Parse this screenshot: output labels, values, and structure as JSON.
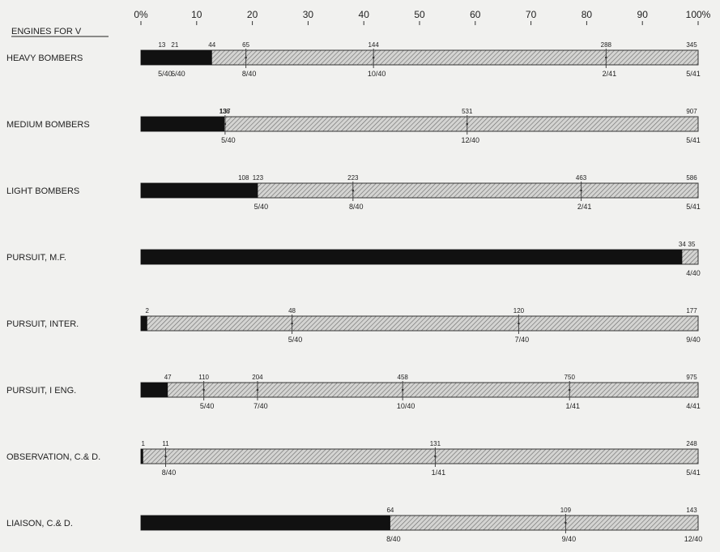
{
  "chart_data": {
    "type": "bar",
    "header_label": "ENGINES FOR V",
    "x_axis": {
      "ticks": [
        0,
        10,
        20,
        30,
        40,
        50,
        60,
        70,
        80,
        90,
        100
      ],
      "tick_labels": [
        "0%",
        "10",
        "20",
        "30",
        "40",
        "50",
        "60",
        "70",
        "80",
        "90",
        "100%"
      ],
      "range": [
        0,
        100
      ]
    },
    "colors": {
      "filled": "#111111",
      "hatched": "#cfcfcf",
      "outline": "#333333"
    },
    "rows": [
      {
        "category": "HEAVY BOMBERS",
        "total": 345,
        "filled": 44,
        "markers": [
          {
            "value": 13,
            "label": "13",
            "date": "5/40"
          },
          {
            "value": 21,
            "label": "21",
            "date": "6/40"
          },
          {
            "value": 44,
            "label": "44",
            "date": ""
          },
          {
            "value": 65,
            "label": "65",
            "date": "8/40"
          },
          {
            "value": 144,
            "label": "144",
            "date": "10/40"
          },
          {
            "value": 288,
            "label": "288",
            "date": "2/41"
          },
          {
            "value": 345,
            "label": "345",
            "date": "5/41"
          }
        ]
      },
      {
        "category": "MEDIUM BOMBERS",
        "total": 907,
        "filled": 136,
        "markers": [
          {
            "value": 136,
            "label": "136",
            "date": ""
          },
          {
            "value": 137,
            "label": "137",
            "date": "5/40"
          },
          {
            "value": 531,
            "label": "531",
            "date": "12/40"
          },
          {
            "value": 907,
            "label": "907",
            "date": "5/41"
          }
        ]
      },
      {
        "category": "LIGHT BOMBERS",
        "total": 586,
        "filled": 123,
        "markers": [
          {
            "value": 108,
            "label": "108",
            "date": ""
          },
          {
            "value": 123,
            "label": "123",
            "date": "5/40"
          },
          {
            "value": 223,
            "label": "223",
            "date": "8/40"
          },
          {
            "value": 463,
            "label": "463",
            "date": "2/41"
          },
          {
            "value": 586,
            "label": "586",
            "date": "5/41"
          }
        ]
      },
      {
        "category": "PURSUIT, M.F.",
        "total": 35,
        "filled": 34,
        "markers": [
          {
            "value": 34,
            "label": "34",
            "date": ""
          },
          {
            "value": 35,
            "label": "35",
            "date": "4/40"
          }
        ]
      },
      {
        "category": "PURSUIT, INTER.",
        "total": 177,
        "filled": 2,
        "markers": [
          {
            "value": 2,
            "label": "2",
            "date": ""
          },
          {
            "value": 48,
            "label": "48",
            "date": "5/40"
          },
          {
            "value": 120,
            "label": "120",
            "date": "7/40"
          },
          {
            "value": 177,
            "label": "177",
            "date": "9/40"
          }
        ]
      },
      {
        "category": "PURSUIT, I ENG.",
        "total": 975,
        "filled": 47,
        "markers": [
          {
            "value": 47,
            "label": "47",
            "date": ""
          },
          {
            "value": 110,
            "label": "110",
            "date": "5/40"
          },
          {
            "value": 204,
            "label": "204",
            "date": "7/40"
          },
          {
            "value": 458,
            "label": "458",
            "date": "10/40"
          },
          {
            "value": 750,
            "label": "750",
            "date": "1/41"
          },
          {
            "value": 975,
            "label": "975",
            "date": "4/41"
          }
        ]
      },
      {
        "category": "OBSERVATION, C.& D.",
        "total": 248,
        "filled": 1,
        "markers": [
          {
            "value": 1,
            "label": "1",
            "date": ""
          },
          {
            "value": 11,
            "label": "11",
            "date": "8/40"
          },
          {
            "value": 131,
            "label": "131",
            "date": "1/41"
          },
          {
            "value": 248,
            "label": "248",
            "date": "5/41"
          }
        ]
      },
      {
        "category": "LIAISON, C.& D.",
        "total": 143,
        "filled": 64,
        "markers": [
          {
            "value": 64,
            "label": "64",
            "date": "8/40"
          },
          {
            "value": 109,
            "label": "109",
            "date": "9/40"
          },
          {
            "value": 143,
            "label": "143",
            "date": "12/40"
          }
        ]
      }
    ]
  }
}
